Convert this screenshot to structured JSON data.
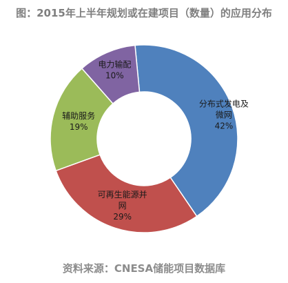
{
  "chart_data": {
    "type": "pie",
    "title": "图：2015年上半年规划或在建项目（数量）的应用分布",
    "source": "资料来源：CNESA储能项目数据库",
    "slices": [
      {
        "name_lines": [
          "分布式发电及",
          "微网"
        ],
        "value": 42,
        "value_label": "42%",
        "color": "#4f81bd"
      },
      {
        "name_lines": [
          "可再生能源并",
          "网"
        ],
        "value": 29,
        "value_label": "29%",
        "color": "#c0504d"
      },
      {
        "name_lines": [
          "辅助服务"
        ],
        "value": 19,
        "value_label": "19%",
        "color": "#9bbb59"
      },
      {
        "name_lines": [
          "电力输配"
        ],
        "value": 10,
        "value_label": "10%",
        "color": "#8064a2"
      }
    ]
  }
}
